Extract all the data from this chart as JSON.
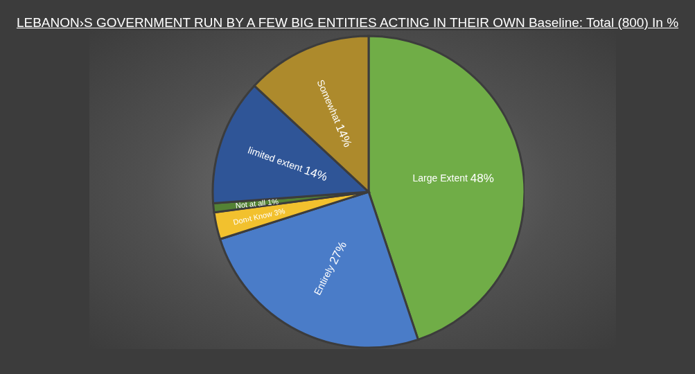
{
  "chart_data": {
    "type": "pie",
    "title": "LEBANON›S GOVERNMENT RUN BY A FEW BIG ENTITIES ACTING IN THEIR OWN Baseline: Total (800) In %",
    "categories": [
      "Large Extent",
      "Entirely",
      "Don›t Know",
      "Not at all",
      "limited extent",
      "Somewhat"
    ],
    "values": [
      48,
      27,
      3,
      1,
      14,
      14
    ],
    "value_labels": [
      "48%",
      "27%",
      "3%",
      "1%",
      "14%",
      "14%"
    ],
    "colors": [
      "#70ad47",
      "#4a7cc8",
      "#f2c12e",
      "#548235",
      "#2f5597",
      "#ad8a2c"
    ]
  }
}
